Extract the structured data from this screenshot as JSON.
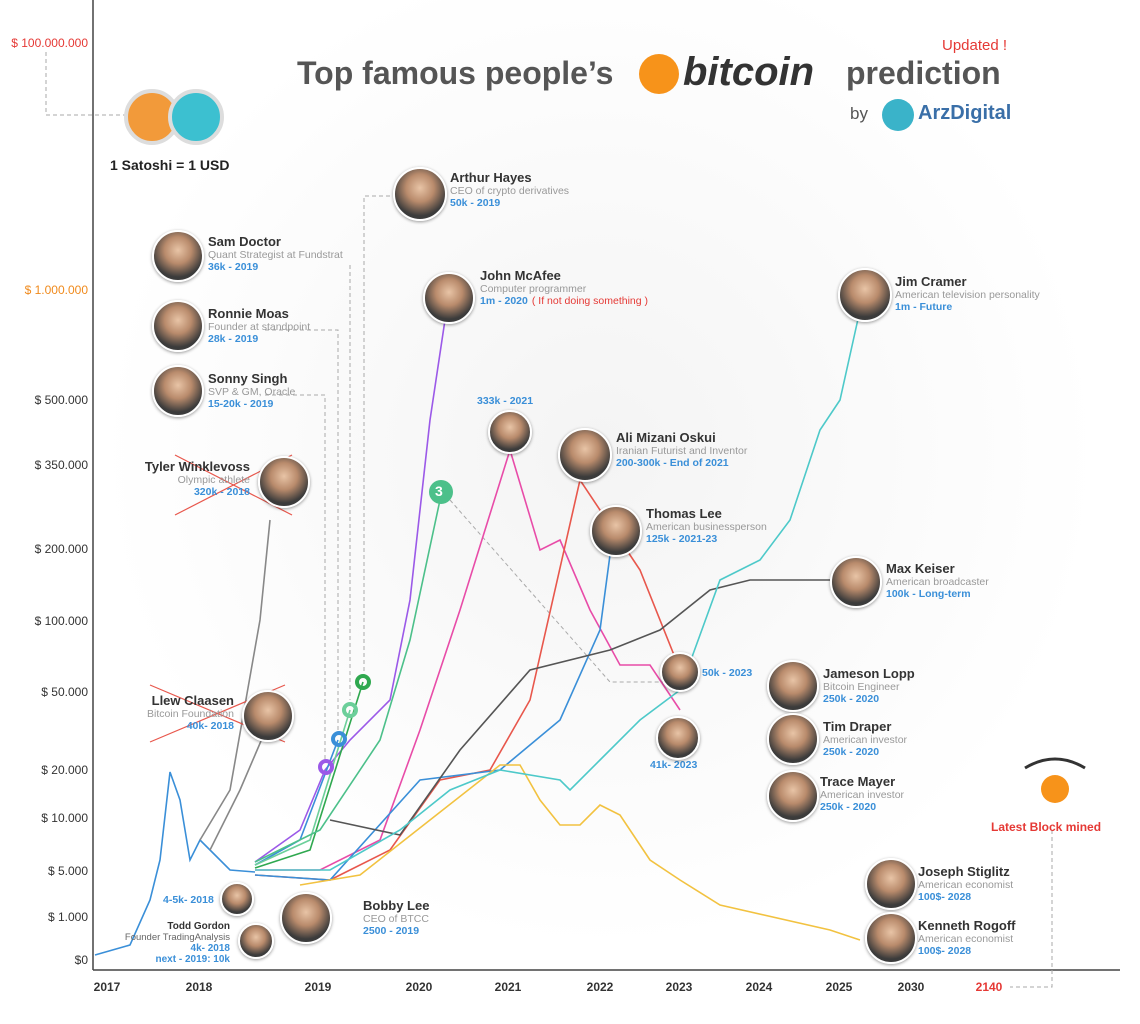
{
  "header": {
    "updated": "Updated !",
    "title_before": "Top famous people’s",
    "title_brand": "bitcoin",
    "title_after": "prediction",
    "by": "by",
    "logo": "ArzDigital"
  },
  "satoshi": "1 Satoshi = 1 USD",
  "y_axis": [
    "$ 100.000.000",
    "$ 1.000.000",
    "$ 500.000",
    "$ 350.000",
    "$ 200.000",
    "$ 100.000",
    "$ 50.000",
    "$ 20.000",
    "$ 10.000",
    "$ 5.000",
    "$ 1.000",
    "$0"
  ],
  "x_axis": [
    "2017",
    "2018",
    "2019",
    "2020",
    "2021",
    "2022",
    "2023",
    "2024",
    "2025",
    "2030",
    "2140"
  ],
  "people": [
    {
      "name": "Arthur Hayes",
      "role": "CEO of crypto derivatives",
      "prediction": "50k - 2019"
    },
    {
      "name": "Sam Doctor",
      "role": "Quant Strategist at Fundstrat",
      "prediction": "36k - 2019"
    },
    {
      "name": "Ronnie Moas",
      "role": "Founder at standpoint",
      "prediction": "28k - 2019"
    },
    {
      "name": "Sonny Singh",
      "role": "SVP & GM, Oracle",
      "prediction": "15-20k - 2019"
    },
    {
      "name": "Tyler Winklevoss",
      "role": "Olympic athlete",
      "prediction": "320k - 2018"
    },
    {
      "name": "John McAfee",
      "role": "Computer programmer",
      "prediction": "1m - 2020",
      "note": "( If not doing something )"
    },
    {
      "name": "Jim Cramer",
      "role": "American television personality",
      "prediction": "1m - Future"
    },
    {
      "name": "Ali Mizani Oskui",
      "role": "Iranian Futurist and Inventor",
      "prediction": "200-300k - End of 2021"
    },
    {
      "name": "Thomas Lee",
      "role": "American businessperson",
      "prediction": "125k - 2021-23"
    },
    {
      "name": "Max Keiser",
      "role": "American broadcaster",
      "prediction": "100k - Long-term"
    },
    {
      "name": "Jameson Lopp",
      "role": "Bitcoin Engineer",
      "prediction": "250k - 2020"
    },
    {
      "name": "Tim Draper",
      "role": "American investor",
      "prediction": "250k - 2020"
    },
    {
      "name": "Trace Mayer",
      "role": "American investor",
      "prediction": "250k - 2020"
    },
    {
      "name": "Llew Claasen",
      "role": "Bitcoin Foundation",
      "prediction": "40k- 2018"
    },
    {
      "name": "Bobby Lee",
      "role": "CEO of BTCC",
      "prediction": "2500 -  2019"
    },
    {
      "name": "Joseph Stiglitz",
      "role": "American economist",
      "prediction": "100$- 2028"
    },
    {
      "name": "Kenneth Rogoff",
      "role": "American economist",
      "prediction": "100$- 2028"
    },
    {
      "name": "Todd Gordon",
      "role": "Founder TradingAnalysis",
      "prediction": "4k- 2018",
      "note": "next - 2019: 10k"
    }
  ],
  "labels": [
    "333k - 2021",
    "50k - 2023",
    "41k- 2023",
    "4-5k- 2018",
    "3",
    "Latest Block mined"
  ]
}
